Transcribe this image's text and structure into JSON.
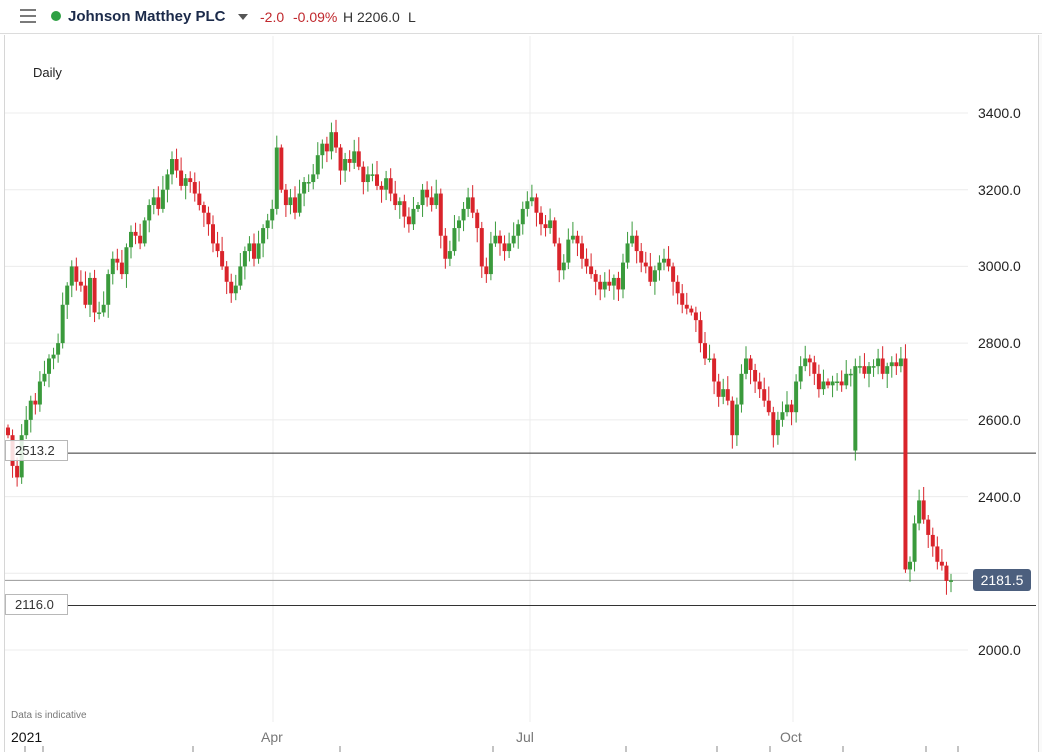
{
  "header": {
    "menu_icon": "hamburger-icon",
    "status_color": "#2ea043",
    "instrument": "Johnson Matthey PLC",
    "change": "-2.0",
    "change_pct": "-0.09%",
    "high_label": "H 2206.0",
    "low_label": "L"
  },
  "chart": {
    "period": "Daily",
    "disclaimer": "Data is indicative",
    "current_price": "2181.5",
    "hline_upper": "2513.2",
    "hline_lower": "2116.0",
    "up_color": "#3a9a3c",
    "down_color": "#d9242b",
    "price_tag_color": "#4c5f7e"
  },
  "chart_data": {
    "type": "candlestick",
    "title": "Johnson Matthey PLC",
    "subtitle": "Daily",
    "xlabel": "",
    "ylabel": "",
    "ylim": [
      1900,
      3480
    ],
    "y_ticks": [
      "3400.0",
      "3200.0",
      "3000.0",
      "2800.0",
      "2600.0",
      "2400.0",
      "2000.0"
    ],
    "x_ticks": [
      "2021",
      "Apr",
      "Jul",
      "Oct"
    ],
    "grid": true,
    "horizontal_lines": [
      2513.2,
      2116.0
    ],
    "last_price": 2181.5,
    "approx_closes": [
      2560,
      2480,
      2450,
      2560,
      2600,
      2650,
      2640,
      2700,
      2720,
      2760,
      2770,
      2800,
      2900,
      2950,
      3000,
      2960,
      2950,
      2900,
      2970,
      2880,
      2880,
      2900,
      2980,
      3020,
      3010,
      2980,
      3050,
      3090,
      3080,
      3060,
      3120,
      3160,
      3180,
      3150,
      3200,
      3240,
      3280,
      3250,
      3210,
      3230,
      3220,
      3190,
      3160,
      3140,
      3110,
      3060,
      3040,
      3000,
      2960,
      2930,
      2950,
      3000,
      3040,
      3060,
      3020,
      3060,
      3100,
      3120,
      3150,
      3310,
      3200,
      3160,
      3180,
      3140,
      3190,
      3220,
      3220,
      3240,
      3290,
      3320,
      3300,
      3350,
      3310,
      3250,
      3280,
      3270,
      3300,
      3260,
      3220,
      3240,
      3240,
      3210,
      3200,
      3230,
      3190,
      3160,
      3170,
      3130,
      3110,
      3150,
      3160,
      3200,
      3180,
      3160,
      3190,
      3080,
      3020,
      3040,
      3100,
      3120,
      3150,
      3180,
      3140,
      3100,
      3000,
      2980,
      3060,
      3080,
      3060,
      3040,
      3060,
      3080,
      3110,
      3150,
      3170,
      3180,
      3140,
      3110,
      3100,
      3120,
      3060,
      2990,
      3010,
      3070,
      3080,
      3060,
      3020,
      3000,
      2980,
      2960,
      2940,
      2960,
      2950,
      2970,
      2940,
      3010,
      3060,
      3080,
      3040,
      3010,
      3000,
      2960,
      2990,
      3010,
      3020,
      3000,
      2960,
      2930,
      2900,
      2890,
      2880,
      2860,
      2800,
      2760,
      2760,
      2700,
      2660,
      2680,
      2650,
      2560,
      2640,
      2720,
      2760,
      2730,
      2700,
      2680,
      2650,
      2620,
      2560,
      2600,
      2620,
      2640,
      2620,
      2700,
      2740,
      2760,
      2750,
      2720,
      2680,
      2700,
      2690,
      2700,
      2700,
      2690,
      2720,
      2720,
      2740,
      2740,
      2720,
      2740,
      2740,
      2760,
      2720,
      2740,
      2750,
      2740,
      2760,
      2210,
      2230,
      2330,
      2390,
      2340,
      2300,
      2270,
      2230,
      2220,
      2180,
      2181.5
    ],
    "approx_period": "Jan 2021 - Nov 2021"
  }
}
